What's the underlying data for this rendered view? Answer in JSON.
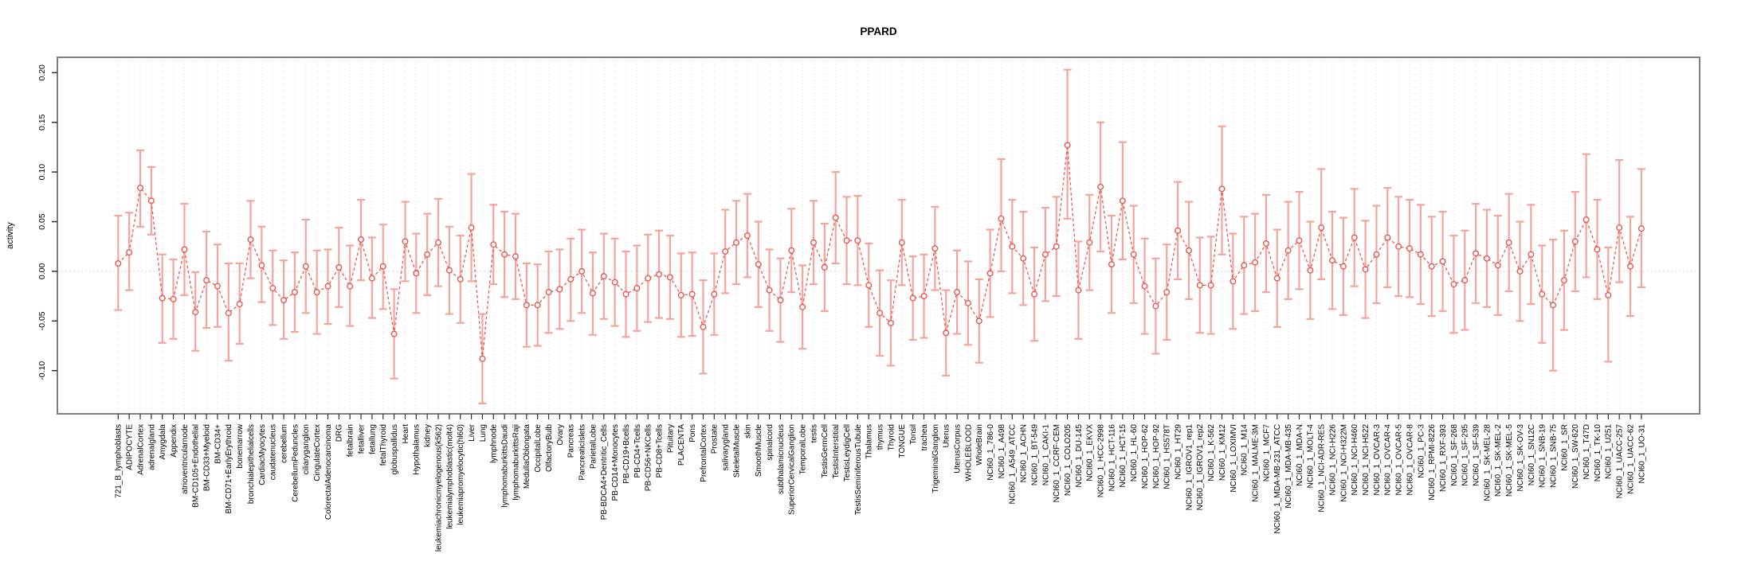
{
  "page": {
    "title": "PPARD"
  },
  "chart_data": {
    "type": "scatter",
    "subtype": "point-range-errorbar",
    "title": "PPARD",
    "xlabel": "",
    "ylabel": "activity",
    "ylim": [
      -0.1435,
      0.2155
    ],
    "yticks": [
      0.2,
      0.15,
      0.1,
      0.05,
      0.0,
      -0.05,
      -0.1
    ],
    "ytick_labels": [
      "0.20",
      "0.15",
      "0.10",
      "0.05",
      "0.00",
      "-0.05",
      "-0.10"
    ],
    "grid": "dotted vertical line per category, dotted horizontal line at 0",
    "legend": "none",
    "point_color": "#e9574e",
    "bar_color": "#f4a49d",
    "grid_color": "#dcdcdc",
    "box_color": "#7f7f7f",
    "categories": [
      "721_B_lymphoblasts",
      "ADIPOCYTE",
      "AdrenalCortex",
      "adrenalgland",
      "Amygdala",
      "Appendix",
      "atrioventricularnode",
      "BM-CD105+Endothelial",
      "BM-CD33+Myeloid",
      "BM-CD34+",
      "BM-CD71+EarlyErythroid",
      "bonemarrow",
      "bronchialepithelialcells",
      "CardiacMyocytes",
      "caudatenucleus",
      "cerebellum",
      "CerebellumPeduncles",
      "ciliaryganglion",
      "CingulateCortex",
      "ColorectalAdenocarcinoma",
      "DRG",
      "fetalbrain",
      "fetalliver",
      "fetallung",
      "fetalThyroid",
      "globuspallidus",
      "Heart",
      "Hypothalamus",
      "kidney",
      "leukemiachronicmyelogenous(k562)",
      "leukemialymphoblastic(molt4)",
      "leukemiapromyelocytic(hl60)",
      "Liver",
      "Lung",
      "lymphnode",
      "lymphomaburkittsDaudi",
      "lymphomaburkittsRaji",
      "MedullaOblongata",
      "OccipitalLobe",
      "OlfactoryBulb",
      "Ovary",
      "Pancreas",
      "PancreaticIslets",
      "ParietalLobe",
      "PB-BDCA4+Dentritic_Cells",
      "PB-CD14+Monocytes",
      "PB-CD19+Bcells",
      "PB-CD4+Tcells",
      "PB-CD56+NKCells",
      "PB-CD8+Tcells",
      "Pituitary",
      "PLACENTA",
      "Pons",
      "PrefrontalCortex",
      "Prostate",
      "salivarygland",
      "SkeletalMuscle",
      "skin",
      "SmoothMuscle",
      "spinalcord",
      "subthalamicnucleus",
      "SuperiorCervicalGanglion",
      "TemporalLobe",
      "testis",
      "TestisGermCell",
      "TestisInterstitial",
      "TestisLeydigCell",
      "TestisSeminiferousTubule",
      "Thalamus",
      "thymus",
      "Thyroid",
      "TONGUE",
      "Tonsil",
      "trachea",
      "TrigeminalGanglion",
      "Uterus",
      "UterusCorpus",
      "WHOLEBLOOD",
      "WholeBrain",
      "NCI60_1_786-0",
      "NCI60_1_A498",
      "NCI60_1_A549_ATCC",
      "NCI60_1_ACHN",
      "NCI60_1_BT-549",
      "NCI60_1_CAKI-1",
      "NCI60_1_CCRF-CEM",
      "NCI60_1_COLO205",
      "NCI60_1_DU-145",
      "NCI60_1_EKVX",
      "NCI60_1_HCC-2998",
      "NCI60_1_HCT-116",
      "NCI60_1_HCT-15",
      "NCI60_1_HL-60",
      "NCI60_1_HOP-62",
      "NCI60_1_HOP-92",
      "NCI60_1_HS578T",
      "NCI60_1_HT29",
      "NCI60_1_IGROV1_rep1",
      "NCI60_1_IGROV1_rep2",
      "NCI60_1_K-562",
      "NCI60_1_KM12",
      "NCI60_1_LOXIMVI",
      "NCI60_1_M14",
      "NCI60_1_MALME-3M",
      "NCI60_1_MCF7",
      "NCI60_1_MDA-MB-231_ATCC",
      "NCI60_1_MDA-MB-435",
      "NCI60_1_MDA-N",
      "NCI60_1_MOLT-4",
      "NCI60_1_NCI-ADR-RES",
      "NCI60_1_NCI-H226",
      "NCI60_1_NCI-H322M",
      "NCI60_1_NCI-H460",
      "NCI60_1_NCI-H522",
      "NCI60_1_OVCAR-3",
      "NCI60_1_OVCAR-4",
      "NCI60_1_OVCAR-5",
      "NCI60_1_OVCAR-8",
      "NCI60_1_PC-3",
      "NCI60_1_RPMI-8226",
      "NCI60_1_RXF-393",
      "NCI60_1_SF-268",
      "NCI60_1_SF-295",
      "NCI60_1_SF-539",
      "NCI60_1_SK-MEL-28",
      "NCI60_1_SK-MEL-2",
      "NCI60_1_SK-MEL-5",
      "NCI60_1_SK-OV-3",
      "NCI60_1_SN12C",
      "NCI60_1_SNB-19",
      "NCI60_1_SNB-75",
      "NCI60_1_SR",
      "NCI60_1_SW-620",
      "NCI60_1_T47D",
      "NCI60_1_TK-10",
      "NCI60_1_U251",
      "NCI60_1_UACC-257",
      "NCI60_1_UACC-62",
      "NCI60_1_UO-31"
    ],
    "series": [
      {
        "name": "activity",
        "values": [
          0.008,
          0.019,
          0.084,
          0.071,
          -0.027,
          -0.028,
          0.022,
          -0.041,
          -0.009,
          -0.015,
          -0.042,
          -0.033,
          0.032,
          0.006,
          -0.017,
          -0.029,
          -0.021,
          0.005,
          -0.021,
          -0.015,
          0.004,
          -0.015,
          0.032,
          -0.007,
          0.005,
          -0.063,
          0.03,
          -0.002,
          0.017,
          0.029,
          0.001,
          -0.008,
          0.044,
          -0.088,
          0.027,
          0.017,
          0.015,
          -0.034,
          -0.034,
          -0.021,
          -0.018,
          -0.008,
          0.0,
          -0.022,
          -0.005,
          -0.011,
          -0.023,
          -0.017,
          -0.007,
          -0.003,
          -0.006,
          -0.024,
          -0.023,
          -0.056,
          -0.023,
          0.02,
          0.029,
          0.036,
          0.007,
          -0.019,
          -0.029,
          0.021,
          -0.036,
          0.029,
          0.004,
          0.054,
          0.031,
          0.031,
          -0.014,
          -0.042,
          -0.052,
          0.029,
          -0.027,
          -0.025,
          0.023,
          -0.062,
          -0.021,
          -0.032,
          -0.05,
          -0.002,
          0.053,
          0.025,
          0.013,
          -0.023,
          0.017,
          0.025,
          0.127,
          -0.019,
          0.029,
          0.085,
          0.007,
          0.071,
          0.017,
          -0.015,
          -0.035,
          -0.021,
          0.041,
          0.021,
          -0.014,
          -0.014,
          0.083,
          -0.01,
          0.006,
          0.009,
          0.028,
          -0.007,
          0.021,
          0.031,
          0.001,
          0.044,
          0.011,
          0.005,
          0.034,
          0.002,
          0.017,
          0.034,
          0.025,
          0.023,
          0.017,
          0.005,
          0.01,
          -0.013,
          -0.009,
          0.018,
          0.013,
          0.006,
          0.029,
          0.0,
          0.017,
          -0.023,
          -0.034,
          -0.009,
          0.03,
          0.052,
          0.022,
          -0.024,
          0.044,
          0.005,
          0.043
        ],
        "lower": [
          -0.039,
          -0.019,
          0.045,
          0.037,
          -0.072,
          -0.068,
          -0.024,
          -0.08,
          -0.057,
          -0.056,
          -0.09,
          -0.073,
          -0.007,
          -0.031,
          -0.054,
          -0.068,
          -0.061,
          -0.042,
          -0.063,
          -0.053,
          -0.036,
          -0.055,
          -0.009,
          -0.047,
          -0.038,
          -0.108,
          -0.01,
          -0.042,
          -0.024,
          -0.015,
          -0.043,
          -0.052,
          -0.01,
          -0.133,
          -0.013,
          -0.026,
          -0.028,
          -0.076,
          -0.075,
          -0.062,
          -0.058,
          -0.05,
          -0.042,
          -0.064,
          -0.048,
          -0.055,
          -0.066,
          -0.06,
          -0.051,
          -0.047,
          -0.048,
          -0.066,
          -0.065,
          -0.103,
          -0.064,
          -0.022,
          -0.013,
          -0.006,
          -0.036,
          -0.06,
          -0.071,
          -0.021,
          -0.078,
          -0.013,
          -0.04,
          0.008,
          -0.013,
          -0.014,
          -0.056,
          -0.085,
          -0.095,
          -0.014,
          -0.069,
          -0.067,
          -0.019,
          -0.105,
          -0.063,
          -0.074,
          -0.092,
          -0.046,
          0.0,
          -0.022,
          -0.034,
          -0.07,
          -0.03,
          -0.025,
          0.053,
          -0.068,
          -0.019,
          0.02,
          -0.042,
          0.012,
          -0.032,
          -0.063,
          -0.083,
          -0.069,
          -0.008,
          -0.028,
          -0.062,
          -0.063,
          0.017,
          -0.058,
          -0.043,
          -0.04,
          -0.021,
          -0.056,
          -0.028,
          -0.018,
          -0.048,
          -0.008,
          -0.038,
          -0.044,
          -0.015,
          -0.047,
          -0.032,
          -0.016,
          -0.025,
          -0.026,
          -0.033,
          -0.045,
          -0.04,
          -0.062,
          -0.059,
          -0.032,
          -0.036,
          -0.044,
          -0.02,
          -0.05,
          -0.033,
          -0.072,
          -0.1,
          -0.059,
          -0.02,
          -0.006,
          -0.028,
          -0.091,
          -0.011,
          -0.045,
          -0.016
        ],
        "upper": [
          0.056,
          0.059,
          0.122,
          0.105,
          0.017,
          0.012,
          0.068,
          -0.001,
          0.04,
          0.027,
          0.008,
          0.008,
          0.071,
          0.045,
          0.021,
          0.011,
          0.019,
          0.052,
          0.021,
          0.022,
          0.044,
          0.026,
          0.072,
          0.034,
          0.047,
          -0.018,
          0.07,
          0.038,
          0.058,
          0.073,
          0.045,
          0.036,
          0.098,
          -0.043,
          0.067,
          0.06,
          0.058,
          0.008,
          0.007,
          0.02,
          0.022,
          0.033,
          0.042,
          0.019,
          0.038,
          0.033,
          0.02,
          0.026,
          0.037,
          0.041,
          0.036,
          0.018,
          0.019,
          -0.009,
          0.018,
          0.062,
          0.071,
          0.078,
          0.05,
          0.022,
          0.013,
          0.063,
          0.006,
          0.071,
          0.048,
          0.1,
          0.075,
          0.076,
          0.028,
          0.001,
          -0.009,
          0.072,
          0.015,
          0.017,
          0.065,
          -0.019,
          0.021,
          0.01,
          -0.008,
          0.042,
          0.113,
          0.072,
          0.06,
          0.024,
          0.064,
          0.075,
          0.203,
          0.03,
          0.077,
          0.15,
          0.056,
          0.13,
          0.066,
          0.033,
          0.013,
          0.027,
          0.09,
          0.07,
          0.034,
          0.035,
          0.146,
          0.038,
          0.055,
          0.058,
          0.077,
          0.042,
          0.07,
          0.08,
          0.05,
          0.103,
          0.06,
          0.054,
          0.083,
          0.051,
          0.066,
          0.084,
          0.075,
          0.072,
          0.067,
          0.055,
          0.06,
          0.036,
          0.041,
          0.068,
          0.062,
          0.056,
          0.078,
          0.05,
          0.067,
          0.026,
          0.032,
          0.041,
          0.08,
          0.118,
          0.072,
          0.024,
          0.112,
          0.055,
          0.103
        ]
      }
    ]
  }
}
